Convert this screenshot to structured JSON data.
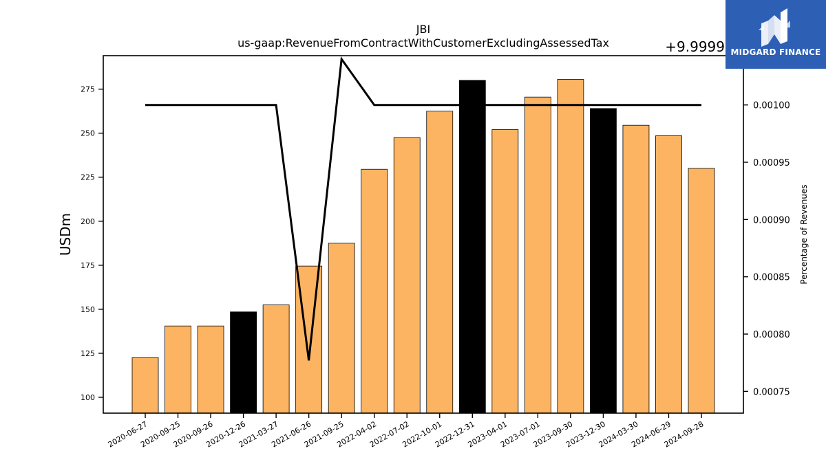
{
  "chart_data": {
    "type": "bar",
    "title": "JBI",
    "subtitle": "us-gaap:RevenueFromContractWithCustomerExcludingAssessedTax",
    "ylabel": "USDm",
    "y2label": "Percentage of Revenues",
    "y2_offset_label": "+9.9999",
    "ylim": [
      91,
      294
    ],
    "y2lim": [
      0.000731,
      0.001043
    ],
    "yticks": [
      100,
      125,
      150,
      175,
      200,
      225,
      250,
      275
    ],
    "y2ticks": [
      "0.00075",
      "0.00080",
      "0.00085",
      "0.00090",
      "0.00095",
      "0.00100"
    ],
    "categories": [
      "2020-06-27",
      "2020-09-25",
      "2020-09-26",
      "2020-12-26",
      "2021-03-27",
      "2021-06-26",
      "2021-09-25",
      "2022-04-02",
      "2022-07-02",
      "2022-10-01",
      "2022-12-31",
      "2023-04-01",
      "2023-07-01",
      "2023-09-30",
      "2023-12-30",
      "2024-03-30",
      "2024-06-29",
      "2024-09-28"
    ],
    "values": [
      122.5,
      140.5,
      140.5,
      148.5,
      152.5,
      174.5,
      187.5,
      229.5,
      247.5,
      262.5,
      280,
      252,
      270.5,
      280.5,
      264,
      254.5,
      248.5,
      230
    ],
    "bar_colors": [
      "#fdb462",
      "#fdb462",
      "#fdb462",
      "#000000",
      "#fdb462",
      "#fdb462",
      "#fdb462",
      "#fdb462",
      "#fdb462",
      "#fdb462",
      "#000000",
      "#fdb462",
      "#fdb462",
      "#fdb462",
      "#000000",
      "#fdb462",
      "#fdb462",
      "#fdb462"
    ],
    "line_series": {
      "axis": "right",
      "color": "#000000",
      "values": [
        0.001,
        0.001,
        0.001,
        0.001,
        0.001,
        0.000777,
        0.00104,
        0.001,
        0.001,
        0.001,
        0.001,
        0.001,
        0.001,
        0.001,
        0.001,
        0.001,
        0.001,
        0.001
      ]
    },
    "grid": false,
    "legend": "none"
  },
  "logo": {
    "text": "MIDGARD FINANCE",
    "color": "#2d5fb4"
  }
}
